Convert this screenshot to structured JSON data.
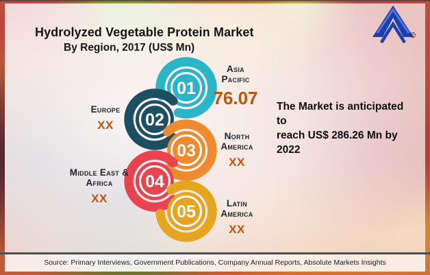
{
  "header": {
    "title": "Hydrolyzed Vegetable Protein Market",
    "subtitle": "By Region, 2017 (US$ Mn)"
  },
  "logo": {
    "copyright": "©"
  },
  "annotation": {
    "line1": "The Market is anticipated to",
    "line2": "reach US$ 286.26 Mn by 2022"
  },
  "footer": {
    "source": "Source: Primary Interviews, Government Publications, Company Annual Reports, Absolute Markets Insights"
  },
  "chart_data": {
    "type": "infographic-ranking",
    "title": "Hydrolyzed Vegetable Protein Market",
    "subtitle": "By Region, 2017 (US$ Mn)",
    "unit": "US$ Mn",
    "year": 2017,
    "forecast_note": "The Market is anticipated to reach US$ 286.26 Mn by 2022",
    "items": [
      {
        "rank": "01",
        "region": "Asia Pacific",
        "label_lines": [
          "Asia",
          "Pacific"
        ],
        "value": "76.07",
        "color": "#2bb5c8"
      },
      {
        "rank": "02",
        "region": "Europe",
        "label_lines": [
          "Europe"
        ],
        "value": "XX",
        "color": "#1d4f63"
      },
      {
        "rank": "03",
        "region": "North America",
        "label_lines": [
          "North",
          "America"
        ],
        "value": "XX",
        "color": "#ef8b2e"
      },
      {
        "rank": "04",
        "region": "Middle East & Africa",
        "label_lines": [
          "Middle East &",
          "Africa"
        ],
        "value": "XX",
        "color": "#e94350"
      },
      {
        "rank": "05",
        "region": "Latin America",
        "label_lines": [
          "Latin",
          "America"
        ],
        "value": "XX",
        "color": "#e6a51f"
      }
    ],
    "value_color": "#c0540e",
    "label_color": "#1c212b"
  }
}
